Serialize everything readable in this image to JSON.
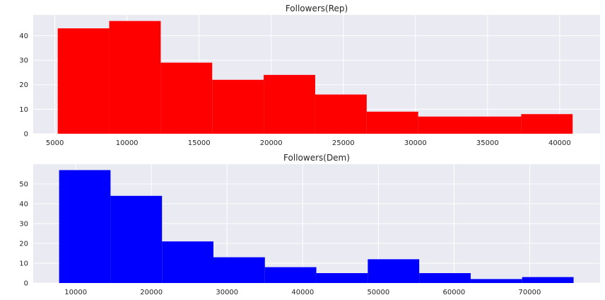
{
  "chart_data": [
    {
      "type": "bar",
      "title": "Followers(Rep)",
      "color": "#ff0000",
      "xlim": [
        3500,
        42800
      ],
      "ylim": [
        0,
        48.5
      ],
      "xticks": [
        5000,
        10000,
        15000,
        20000,
        25000,
        30000,
        35000,
        40000
      ],
      "yticks": [
        0,
        10,
        20,
        30,
        40
      ],
      "bins": [
        {
          "x0": 5200,
          "x1": 8770,
          "count": 43
        },
        {
          "x0": 8770,
          "x1": 12340,
          "count": 46
        },
        {
          "x0": 12340,
          "x1": 15910,
          "count": 29
        },
        {
          "x0": 15910,
          "x1": 19480,
          "count": 22
        },
        {
          "x0": 19480,
          "x1": 23050,
          "count": 24
        },
        {
          "x0": 23050,
          "x1": 26620,
          "count": 16
        },
        {
          "x0": 26620,
          "x1": 30190,
          "count": 9
        },
        {
          "x0": 30190,
          "x1": 33760,
          "count": 7
        },
        {
          "x0": 33760,
          "x1": 37330,
          "count": 7
        },
        {
          "x0": 37330,
          "x1": 40900,
          "count": 8
        }
      ]
    },
    {
      "type": "bar",
      "title": "Followers(Dem)",
      "color": "#0000ff",
      "xlim": [
        4380,
        79300
      ],
      "ylim": [
        0,
        60
      ],
      "xticks": [
        10000,
        20000,
        30000,
        40000,
        50000,
        60000,
        70000
      ],
      "yticks": [
        0,
        10,
        20,
        30,
        40,
        50
      ],
      "bins": [
        {
          "x0": 7800,
          "x1": 14600,
          "count": 57
        },
        {
          "x0": 14600,
          "x1": 21400,
          "count": 44
        },
        {
          "x0": 21400,
          "x1": 28200,
          "count": 21
        },
        {
          "x0": 28200,
          "x1": 35000,
          "count": 13
        },
        {
          "x0": 35000,
          "x1": 41800,
          "count": 8
        },
        {
          "x0": 41800,
          "x1": 48600,
          "count": 5
        },
        {
          "x0": 48600,
          "x1": 55400,
          "count": 12
        },
        {
          "x0": 55400,
          "x1": 62200,
          "count": 5
        },
        {
          "x0": 62200,
          "x1": 69000,
          "count": 2
        },
        {
          "x0": 69000,
          "x1": 75800,
          "count": 3
        }
      ]
    }
  ]
}
